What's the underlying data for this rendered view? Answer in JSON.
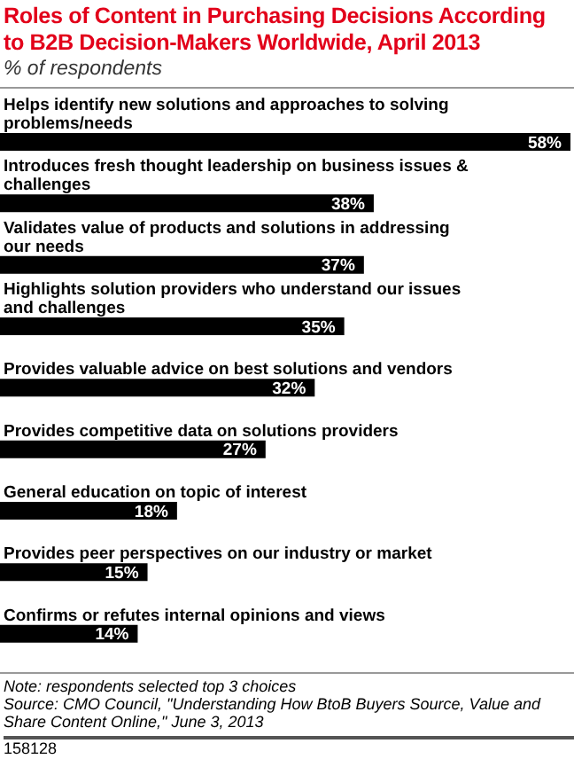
{
  "chart_data": {
    "type": "bar",
    "orientation": "horizontal",
    "title": "Roles of Content in Purchasing Decisions According to B2B Decision-Makers Worldwide, April 2013",
    "subtitle": "% of respondents",
    "categories": [
      "Helps identify new solutions and approaches to solving problems/needs",
      "Introduces fresh thought leadership on business issues & challenges",
      "Validates value of products and solutions in addressing our needs",
      "Highlights solution providers who understand our issues and challenges",
      "Provides valuable advice on best solutions and vendors",
      "Provides competitive data on solutions providers",
      "General education on topic of interest",
      "Provides peer perspectives on our industry or market",
      "Confirms or refutes internal opinions and views"
    ],
    "values": [
      58,
      38,
      37,
      35,
      32,
      27,
      18,
      15,
      14
    ],
    "value_labels": [
      "58%",
      "38%",
      "37%",
      "35%",
      "32%",
      "27%",
      "18%",
      "15%",
      "14%"
    ],
    "color": "#000000",
    "annotations": [
      "Note: respondents selected top 3 choices",
      "Source: CMO Council, \"Understanding How BtoB Buyers Source, Value and Share Content Online,\" June 3, 2013",
      "158128"
    ]
  }
}
